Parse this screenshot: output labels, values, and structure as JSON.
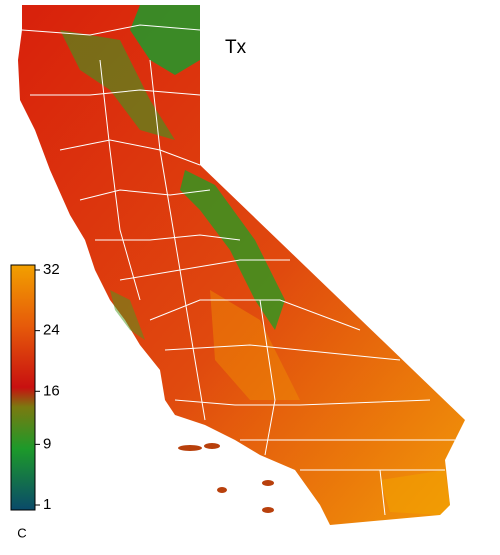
{
  "map": {
    "title": "Tx",
    "colorbar": {
      "unit": "C",
      "lim": [
        1,
        32
      ],
      "ticks": [
        1,
        9,
        16,
        24,
        32
      ]
    }
  }
}
